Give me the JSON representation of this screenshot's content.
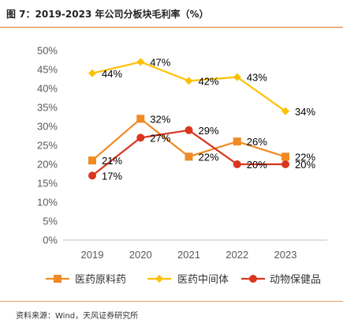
{
  "header": {
    "title": "图 7：2019-2023 年公司分板块毛利率（%）"
  },
  "footer": {
    "source": "资料来源：Wind，天风证券研究所"
  },
  "chart_data": {
    "type": "line",
    "title": "图 7：2019-2023 年公司分板块毛利率（%）",
    "xlabel": "",
    "ylabel": "",
    "categories": [
      "2019",
      "2020",
      "2021",
      "2022",
      "2023"
    ],
    "y_ticks": [
      "0%",
      "5%",
      "10%",
      "15%",
      "20%",
      "25%",
      "30%",
      "35%",
      "40%",
      "45%",
      "50%"
    ],
    "ylim": [
      0,
      50
    ],
    "grid": false,
    "legend_position": "bottom",
    "series": [
      {
        "name": "医药原料药",
        "color": "#f08a24",
        "marker": "square",
        "values": [
          21,
          32,
          22,
          26,
          22
        ],
        "labels": [
          "21%",
          "32%",
          "22%",
          "26%",
          "22%"
        ]
      },
      {
        "name": "医药中间体",
        "color": "#ffc000",
        "marker": "diamond",
        "values": [
          44,
          47,
          42,
          43,
          34
        ],
        "labels": [
          "44%",
          "47%",
          "42%",
          "43%",
          "34%"
        ]
      },
      {
        "name": "动物保健品",
        "color": "#d9351f",
        "marker": "circle",
        "values": [
          17,
          27,
          29,
          20,
          20
        ],
        "labels": [
          "17%",
          "27%",
          "29%",
          "20%",
          "20%"
        ]
      }
    ]
  }
}
